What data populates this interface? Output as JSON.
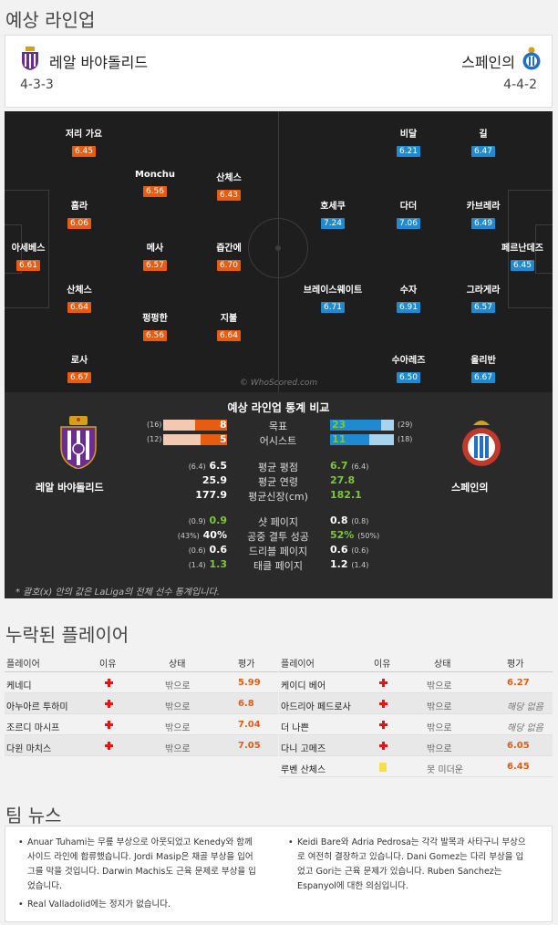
{
  "lineup_section": {
    "title": "예상 라인업"
  },
  "home": {
    "name": "레알 바야돌리드",
    "formation": "4-3-3",
    "color": "#e85c12"
  },
  "away": {
    "name": "스페인의",
    "formation": "4-4-2",
    "color": "#1f8ad1"
  },
  "home_players": [
    {
      "name": "저리 가요",
      "rating": "6.45"
    },
    {
      "name": "Monchu",
      "rating": "6.56"
    },
    {
      "name": "산체스",
      "rating": "6.43"
    },
    {
      "name": "흠라",
      "rating": "6.06"
    },
    {
      "name": "아세베스",
      "rating": "6.61"
    },
    {
      "name": "메사",
      "rating": "6.57"
    },
    {
      "name": "즙간에",
      "rating": "6.70"
    },
    {
      "name": "산체스",
      "rating": "6.64"
    },
    {
      "name": "펑펑한",
      "rating": "6.56"
    },
    {
      "name": "지불",
      "rating": "6.64"
    },
    {
      "name": "로사",
      "rating": "6.67"
    }
  ],
  "away_players": [
    {
      "name": "비달",
      "rating": "6.21"
    },
    {
      "name": "길",
      "rating": "6.47"
    },
    {
      "name": "호세쿠",
      "rating": "7.24"
    },
    {
      "name": "다더",
      "rating": "7.06"
    },
    {
      "name": "카브레라",
      "rating": "6.49"
    },
    {
      "name": "페르난데즈",
      "rating": "6.45"
    },
    {
      "name": "브레이스웨이트",
      "rating": "6.71"
    },
    {
      "name": "수자",
      "rating": "6.91"
    },
    {
      "name": "그라게라",
      "rating": "6.57"
    },
    {
      "name": "수아레즈",
      "rating": "6.50"
    },
    {
      "name": "올리반",
      "rating": "6.67"
    }
  ],
  "watermark": "© WhoScored.com",
  "stats": {
    "title": "예상 라인업 통계 비교",
    "home_name": "레알 바야돌리드",
    "away_name": "스페인의",
    "bars": [
      {
        "label": "목표",
        "home": 8,
        "home_total": "(16)",
        "away": 23,
        "away_total": "(29)"
      },
      {
        "label": "어시스트",
        "home": 5,
        "home_total": "(12)",
        "away": 11,
        "away_total": "(18)"
      }
    ],
    "rows": [
      {
        "label": "평균 평점",
        "home_paren": "(6.4)",
        "home": "6.5",
        "home_green": false,
        "away": "6.7",
        "away_paren": "(6.4)",
        "away_green": true
      },
      {
        "label": "평균 연령",
        "home_paren": "",
        "home": "25.9",
        "home_green": false,
        "away": "27.8",
        "away_paren": "",
        "away_green": true
      },
      {
        "label": "평균신장(cm)",
        "home_paren": "",
        "home": "177.9",
        "home_green": false,
        "away": "182.1",
        "away_paren": "",
        "away_green": true
      },
      {
        "label": "샷 페이지",
        "home_paren": "(0.9)",
        "home": "0.9",
        "home_green": true,
        "away": "0.8",
        "away_paren": "(0.8)",
        "away_green": false
      },
      {
        "label": "공중 결투 성공",
        "home_paren": "(43%)",
        "home": "40%",
        "home_green": false,
        "away": "52%",
        "away_paren": "(50%)",
        "away_green": true
      },
      {
        "label": "드리블 페이지",
        "home_paren": "(0.6)",
        "home": "0.6",
        "home_green": false,
        "away": "0.6",
        "away_paren": "(0.6)",
        "away_green": false
      },
      {
        "label": "태클 페이지",
        "home_paren": "(1.4)",
        "home": "1.3",
        "home_green": true,
        "away": "1.2",
        "away_paren": "(1.4)",
        "away_green": false
      }
    ],
    "footnote": "* 괄호(x) 안의 값은 LaLiga의 전체 선수 통계입니다."
  },
  "missing_section": {
    "title": "누락된 플레이어",
    "headers": {
      "player": "플레이어",
      "reason": "이유",
      "status": "상태",
      "rating": "평가"
    },
    "home": [
      {
        "player": "케네디",
        "reason": "injury",
        "status": "밖으로",
        "rating": "5.99",
        "na": false
      },
      {
        "player": "아누아르 투하미",
        "reason": "injury",
        "status": "밖으로",
        "rating": "6.8",
        "na": false
      },
      {
        "player": "조르디 마시프",
        "reason": "injury",
        "status": "밖으로",
        "rating": "7.04",
        "na": false
      },
      {
        "player": "다윈 마치스",
        "reason": "injury",
        "status": "밖으로",
        "rating": "7.05",
        "na": false
      }
    ],
    "away": [
      {
        "player": "케이디 베어",
        "reason": "injury",
        "status": "밖으로",
        "rating": "6.27",
        "na": false
      },
      {
        "player": "아드리아 페드로사",
        "reason": "injury",
        "status": "밖으로",
        "rating": "해당 없음",
        "na": true
      },
      {
        "player": "더 나쁜",
        "reason": "injury",
        "status": "밖으로",
        "rating": "해당 없음",
        "na": true
      },
      {
        "player": "다니 고메즈",
        "reason": "injury",
        "status": "밖으로",
        "rating": "6.05",
        "na": false
      },
      {
        "player": "루벤 산체스",
        "reason": "card",
        "status": "못 미더운",
        "rating": "6.45",
        "na": false
      }
    ]
  },
  "news_section": {
    "title": "팀 뉴스",
    "home_items": [
      "Anuar Tuhami는 무릎 부상으로 아웃되었고 Kenedy와 함께 사이드 라인에 합류했습니다. Jordi Masip은 채골 부상을 입어 그를 막을 것입니다. Darwin Machis도 근육 문제로 부상을 입었습니다.",
      "Real Valladolid에는 정지가 없습니다."
    ],
    "away_items": [
      "Keidi Bare와 Adria Pedrosa는 각각 발목과 사타구니 부상으로 여전히 결장하고 있습니다. Dani Gomez는 다리 부상을 입었고 Gori는 근육 문제가 있습니다. Ruben Sanchez는 Espanyol에 대한 의심입니다."
    ]
  }
}
